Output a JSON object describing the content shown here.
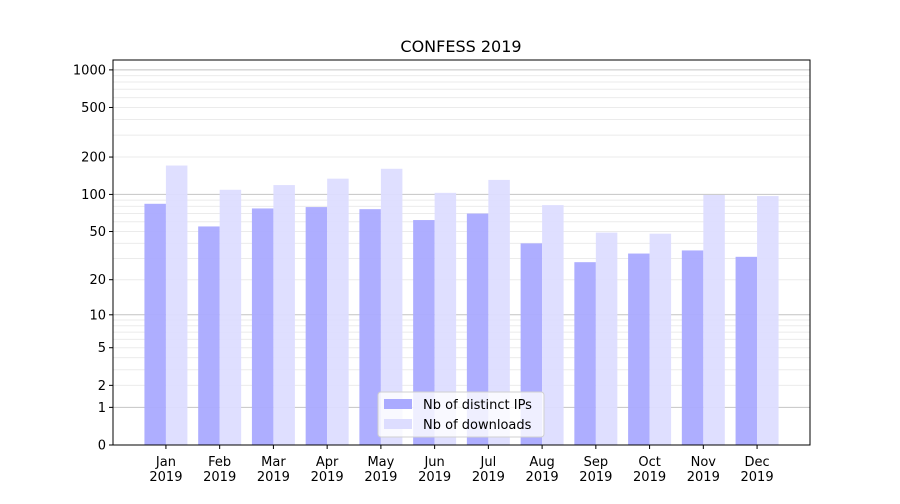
{
  "chart_data": {
    "type": "bar",
    "title": "CONFESS 2019",
    "xlabel": "",
    "ylabel": "",
    "yscale": "symlog (log10(1+y))",
    "ylim": [
      0,
      1200
    ],
    "yticks": [
      0,
      1,
      2,
      5,
      10,
      20,
      50,
      100,
      200,
      500,
      1000
    ],
    "grid": true,
    "legend_position": "lower-center",
    "categories": [
      "Jan\n2019",
      "Feb\n2019",
      "Mar\n2019",
      "Apr\n2019",
      "May\n2019",
      "Jun\n2019",
      "Jul\n2019",
      "Aug\n2019",
      "Sep\n2019",
      "Oct\n2019",
      "Nov\n2019",
      "Dec\n2019"
    ],
    "series": [
      {
        "name": "Nb of distinct IPs",
        "color": "#aaaaff",
        "values": [
          84,
          55,
          77,
          79,
          76,
          62,
          70,
          40,
          28,
          33,
          35,
          31
        ]
      },
      {
        "name": "Nb of downloads",
        "color": "#ddddff",
        "values": [
          171,
          109,
          119,
          134,
          161,
          103,
          131,
          82,
          49,
          48,
          99,
          97
        ]
      }
    ]
  }
}
